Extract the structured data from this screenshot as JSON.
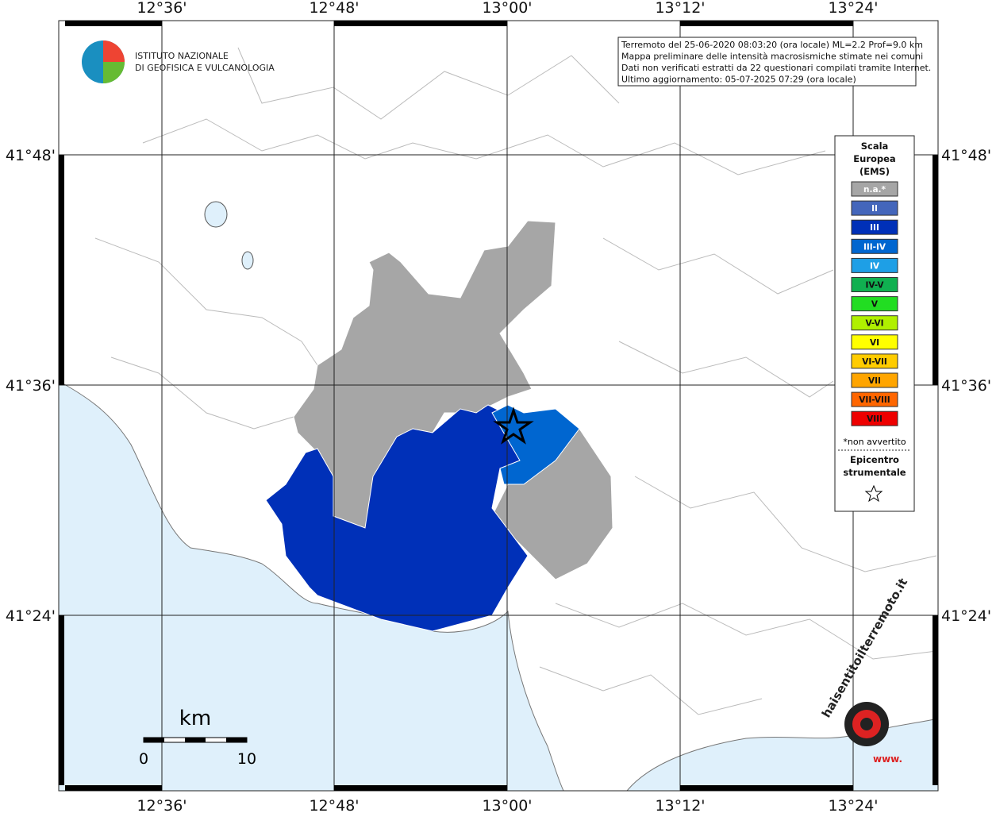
{
  "map": {
    "lon_labels": [
      "12°36'",
      "12°48'",
      "13°00'",
      "13°12'",
      "13°24'"
    ],
    "lat_labels": [
      "41°48'",
      "41°36'",
      "41°24'"
    ]
  },
  "logo": {
    "line1": "ISTITUTO NAZIONALE",
    "line2": "DI GEOFISICA E VULCANOLOGIA"
  },
  "info": {
    "lines": [
      "Terremoto del 25-06-2020 08:03:20 (ora locale) ML=2.2 Prof=9.0 km",
      "Mappa preliminare delle intensità macrosismiche stimate nei comuni",
      "Dati non verificati estratti da 22 questionari compilati tramite Internet.",
      "Ultimo aggiornamento: 05-07-2025 07:29 (ora locale)"
    ]
  },
  "legend": {
    "title": [
      "Scala",
      "Europea",
      "(EMS)"
    ],
    "items": [
      {
        "label": "n.a.*",
        "color": "#a6a6a6",
        "text_color": "#ffffff"
      },
      {
        "label": "II",
        "color": "#4466bb",
        "text_color": "#ffffff"
      },
      {
        "label": "III",
        "color": "#0030b8",
        "text_color": "#ffffff"
      },
      {
        "label": "III-IV",
        "color": "#0066d0",
        "text_color": "#ffffff"
      },
      {
        "label": "IV",
        "color": "#1e9fe6",
        "text_color": "#ffffff"
      },
      {
        "label": "IV-V",
        "color": "#10b050",
        "text_color": "#111111"
      },
      {
        "label": "V",
        "color": "#22dd22",
        "text_color": "#111111"
      },
      {
        "label": "V-VI",
        "color": "#b0f000",
        "text_color": "#111111"
      },
      {
        "label": "VI",
        "color": "#ffff00",
        "text_color": "#111111"
      },
      {
        "label": "VI-VII",
        "color": "#ffcc00",
        "text_color": "#111111"
      },
      {
        "label": "VII",
        "color": "#ffa500",
        "text_color": "#111111"
      },
      {
        "label": "VII-VIII",
        "color": "#ff6600",
        "text_color": "#111111"
      },
      {
        "label": "VIII",
        "color": "#ee0000",
        "text_color": "#111111"
      }
    ],
    "note": "*non avvertito",
    "epicenter": [
      "Epicentro",
      "strumentale"
    ]
  },
  "scale_bar": {
    "unit": "km",
    "start": "0",
    "end": "10"
  },
  "watermark": {
    "site": "haisentitoilterremoto.it",
    "www": "www."
  }
}
